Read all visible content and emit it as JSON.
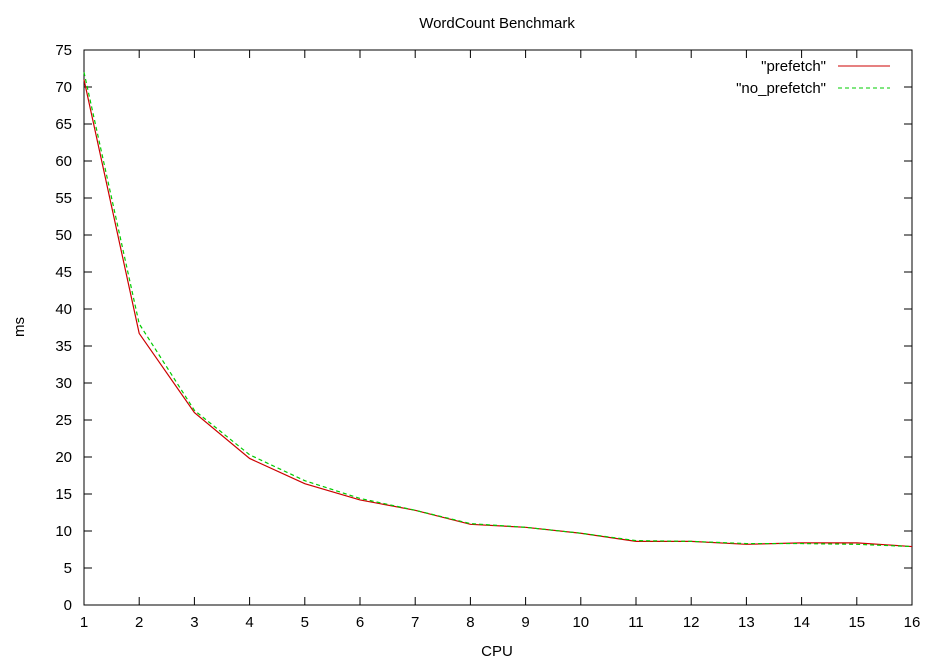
{
  "chart_data": {
    "type": "line",
    "title": "WordCount Benchmark",
    "xlabel": "CPU",
    "ylabel": "ms",
    "xlim": [
      1,
      16
    ],
    "ylim": [
      0,
      75
    ],
    "xticks": [
      1,
      2,
      3,
      4,
      5,
      6,
      7,
      8,
      9,
      10,
      11,
      12,
      13,
      14,
      15,
      16
    ],
    "yticks": [
      0,
      5,
      10,
      15,
      20,
      25,
      30,
      35,
      40,
      45,
      50,
      55,
      60,
      65,
      70,
      75
    ],
    "grid": false,
    "legend_position": "top-right",
    "x": [
      1,
      2,
      3,
      4,
      5,
      6,
      7,
      8,
      9,
      10,
      11,
      12,
      13,
      14,
      15,
      16
    ],
    "series": [
      {
        "name": "\"prefetch\"",
        "color": "#cc0000",
        "style": "solid",
        "values": [
          71,
          36.7,
          26,
          19.8,
          16.4,
          14.2,
          12.8,
          10.9,
          10.5,
          9.7,
          8.6,
          8.6,
          8.2,
          8.4,
          8.4,
          7.9
        ]
      },
      {
        "name": "\"no_prefetch\"",
        "color": "#00cc00",
        "style": "dashed",
        "values": [
          72,
          38,
          26.3,
          20.3,
          16.8,
          14.4,
          12.8,
          11,
          10.5,
          9.7,
          8.7,
          8.6,
          8.3,
          8.3,
          8.2,
          7.9
        ]
      }
    ]
  }
}
